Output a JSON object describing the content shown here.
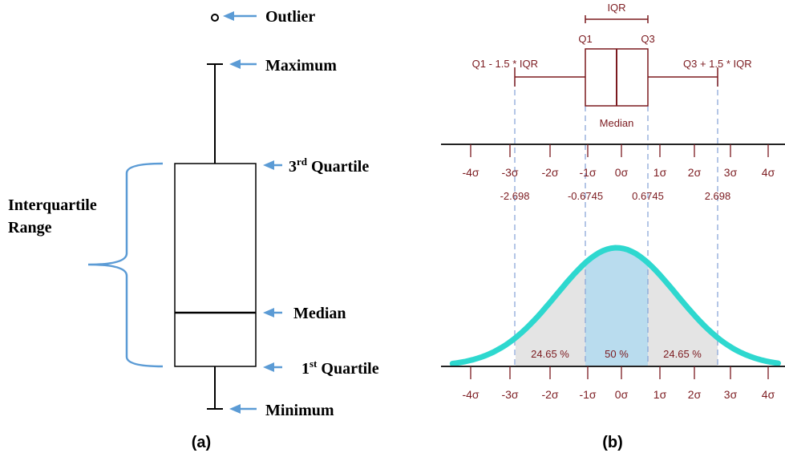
{
  "panel_a": {
    "caption": "(a)",
    "labels": {
      "outlier": "Outlier",
      "maximum": "Maximum",
      "q3_main": "3",
      "q3_sup": "rd",
      "q3_rest": " Quartile",
      "median": "Median",
      "q1_main": "1",
      "q1_sup": "st",
      "q1_rest": " Quartile",
      "minimum": "Minimum",
      "iqr_line1": "Interquartile",
      "iqr_line2": "Range"
    }
  },
  "panel_b": {
    "caption": "(b)",
    "boxplot_labels": {
      "iqr": "IQR",
      "q1": "Q1",
      "q3": "Q3",
      "lower_fence": "Q1 - 1.5 * IQR",
      "upper_fence": "Q3 + 1.5 * IQR",
      "median": "Median"
    },
    "sigma_ticks": [
      "-4σ",
      "-3σ",
      "-2σ",
      "-1σ",
      "0σ",
      "1σ",
      "2σ",
      "3σ",
      "4σ"
    ],
    "z_values": [
      "-2.698",
      "-0.6745",
      "0.6745",
      "2.698"
    ],
    "region_percentages": [
      "24.65 %",
      "50 %",
      "24.65 %"
    ]
  },
  "colors": {
    "arrow_blue": "#5b9bd5",
    "dark_red": "#7b1a1f",
    "curve_teal": "#2ed8cf",
    "center_fill": "#b9dcee",
    "tail_fill": "#e4e4e4",
    "dash_blue": "#8ba7d8"
  }
}
